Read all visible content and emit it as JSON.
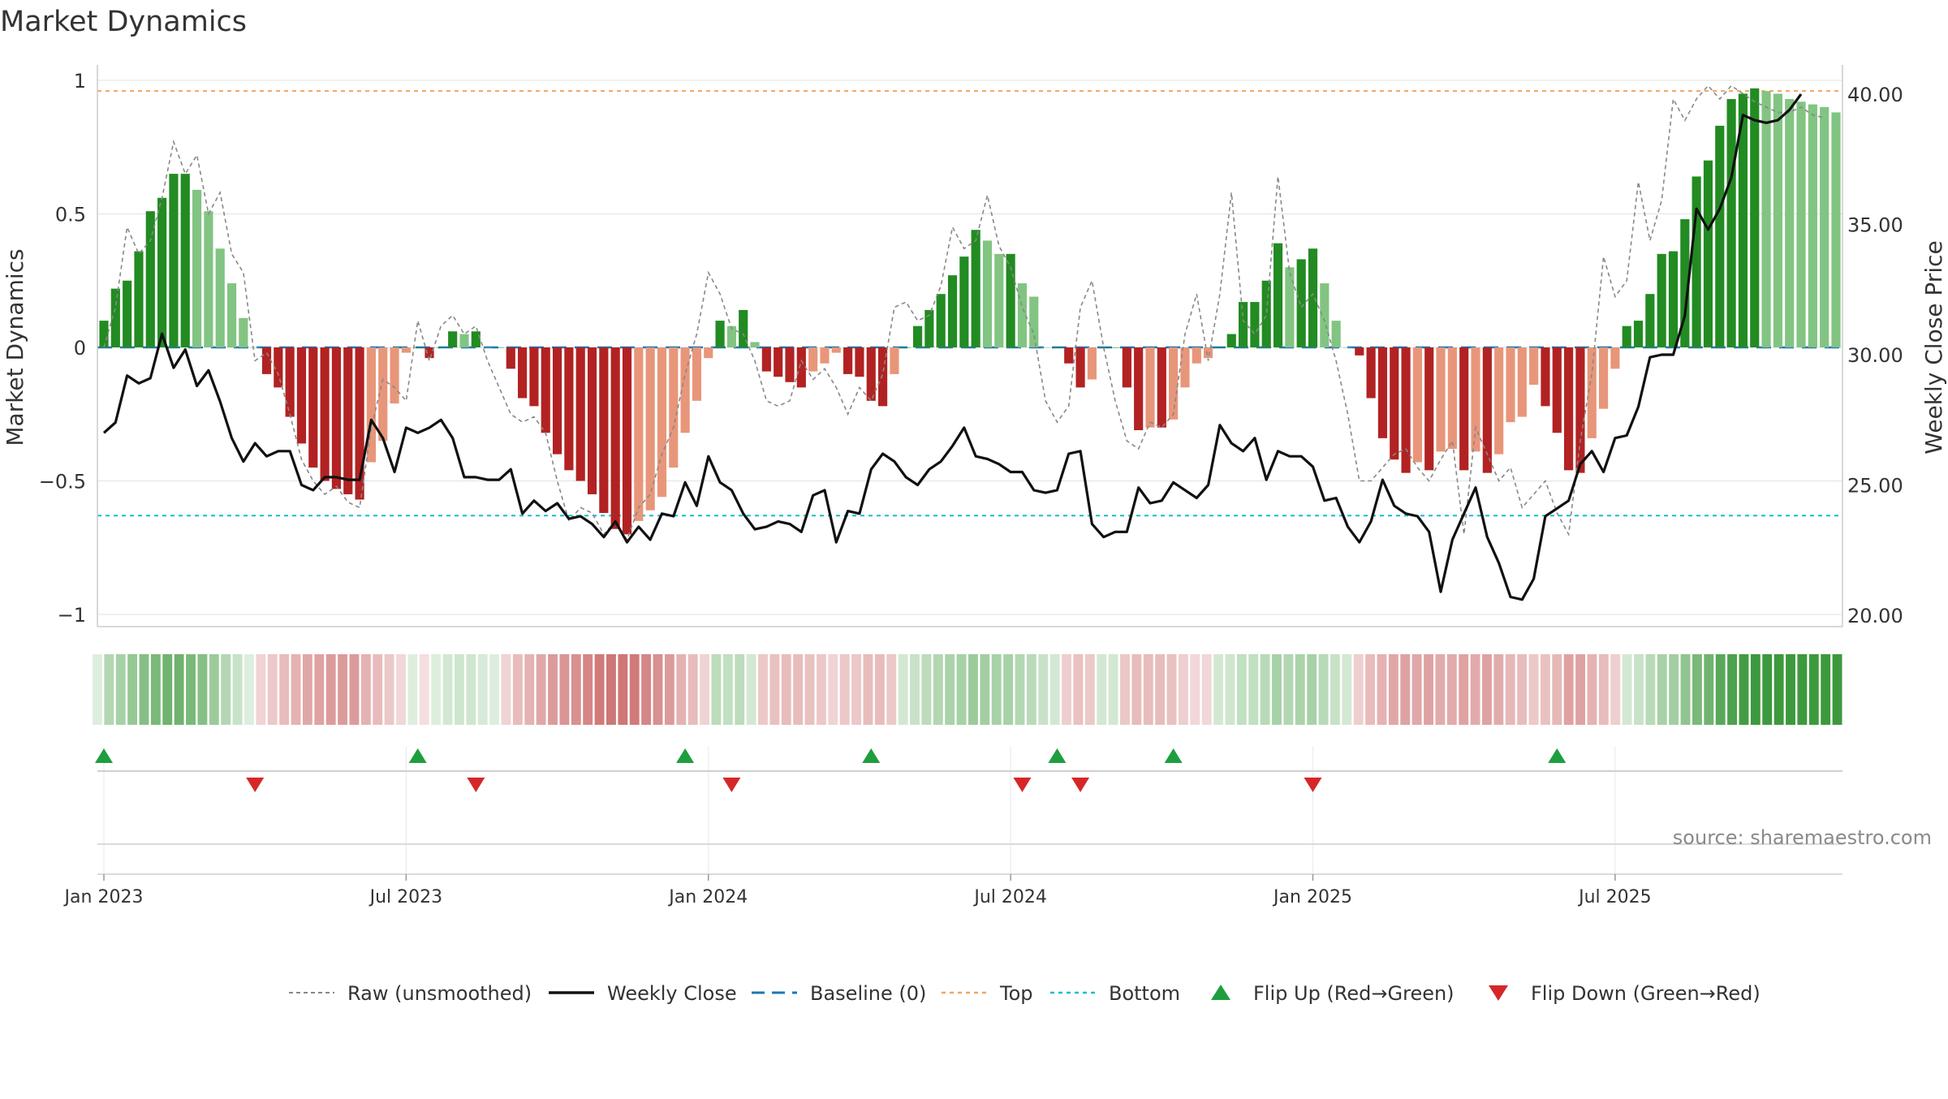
{
  "title": "Market Dynamics",
  "source_text": "source: sharemaestro.com",
  "chart_data": {
    "type": "bar",
    "title": "Market Dynamics",
    "ylabel_left": "Market Dynamics",
    "ylabel_right": "Weekly Close Price",
    "ylim_left": [
      -1.05,
      1.05
    ],
    "ylim_right": [
      20,
      40
    ],
    "yticks_left": [
      {
        "value": 1,
        "label": "1"
      },
      {
        "value": 0.5,
        "label": "0.5"
      },
      {
        "value": 0,
        "label": "0"
      },
      {
        "value": -0.5,
        "label": "−0.5"
      },
      {
        "value": -1,
        "label": "−1"
      }
    ],
    "yticks_right": [
      {
        "value": 40,
        "label": "40.00"
      },
      {
        "value": 35,
        "label": "35.00"
      },
      {
        "value": 30,
        "label": "30.00"
      },
      {
        "value": 25,
        "label": "25.00"
      },
      {
        "value": 20,
        "label": "20.00"
      }
    ],
    "xticks": [
      {
        "week": 1,
        "label": "Jan 2023"
      },
      {
        "week": 27,
        "label": "Jul 2023"
      },
      {
        "week": 53,
        "label": "Jan 2024"
      },
      {
        "week": 79,
        "label": "Jul 2024"
      },
      {
        "week": 105,
        "label": "Jan 2025"
      },
      {
        "week": 131,
        "label": "Jul 2025"
      }
    ],
    "reference_lines": {
      "top": 0.96,
      "bottom": -0.63,
      "baseline": 0
    },
    "grid": true,
    "legend_position": "bottom",
    "legend": [
      {
        "label": "Raw (unsmoothed)",
        "style": "dashed-gray"
      },
      {
        "label": "Weekly Close",
        "style": "solid-black"
      },
      {
        "label": "Baseline (0)",
        "style": "dashed-blue"
      },
      {
        "label": "Top",
        "style": "dotted-orange"
      },
      {
        "label": "Bottom",
        "style": "dotted-cyan"
      },
      {
        "label": "Flip Up (Red→Green)",
        "style": "triangle-up"
      },
      {
        "label": "Flip Down (Green→Red)",
        "style": "triangle-down"
      }
    ],
    "colors": {
      "green_strong": "#228b22",
      "green_light": "#82c482",
      "red_strong": "#b22222",
      "red_light": "#e8967a",
      "raw": "#888888",
      "close": "#111111",
      "baseline": "#1f77b4",
      "top": "#f4a460",
      "bottom": "#17becf",
      "flip_up": "#1e9e3e",
      "flip_down": "#d62728"
    },
    "series": [
      {
        "name": "Market Dynamics",
        "values": [
          0.1,
          0.22,
          0.25,
          0.36,
          0.51,
          0.56,
          0.65,
          0.65,
          0.59,
          0.51,
          0.37,
          0.24,
          0.11,
          0.0,
          -0.1,
          -0.15,
          -0.26,
          -0.36,
          -0.45,
          -0.5,
          -0.53,
          -0.55,
          -0.57,
          -0.43,
          -0.35,
          -0.21,
          -0.02,
          0.0,
          -0.04,
          0.0,
          0.06,
          0.05,
          0.06,
          0.0,
          0.0,
          -0.08,
          -0.19,
          -0.22,
          -0.32,
          -0.4,
          -0.46,
          -0.5,
          -0.55,
          -0.62,
          -0.68,
          -0.7,
          -0.65,
          -0.61,
          -0.56,
          -0.45,
          -0.32,
          -0.2,
          -0.04,
          0.1,
          0.08,
          0.14,
          0.02,
          -0.09,
          -0.11,
          -0.13,
          -0.15,
          -0.09,
          -0.06,
          -0.02,
          -0.1,
          -0.11,
          -0.2,
          -0.22,
          -0.1,
          0.0,
          0.08,
          0.14,
          0.2,
          0.27,
          0.34,
          0.44,
          0.4,
          0.35,
          0.35,
          0.24,
          0.19,
          0.0,
          0.0,
          -0.06,
          -0.15,
          -0.12,
          0.0,
          0.0,
          -0.15,
          -0.31,
          -0.3,
          -0.3,
          -0.27,
          -0.15,
          -0.06,
          -0.04,
          0.0,
          0.05,
          0.17,
          0.17,
          0.25,
          0.39,
          0.3,
          0.33,
          0.37,
          0.24,
          0.1,
          0.0,
          -0.03,
          -0.19,
          -0.34,
          -0.42,
          -0.47,
          -0.43,
          -0.46,
          -0.39,
          -0.38,
          -0.46,
          -0.39,
          -0.47,
          -0.4,
          -0.28,
          -0.26,
          -0.14,
          -0.22,
          -0.32,
          -0.46,
          -0.47,
          -0.34,
          -0.23,
          -0.08,
          0.08,
          0.1,
          0.2,
          0.35,
          0.36,
          0.48,
          0.64,
          0.7,
          0.83,
          0.93,
          0.95,
          0.97,
          0.96,
          0.95,
          0.93,
          0.92,
          0.91,
          0.9,
          0.88
        ]
      },
      {
        "name": "Raw (unsmoothed)",
        "values": [
          0.0,
          0.15,
          0.45,
          0.35,
          0.4,
          0.56,
          0.77,
          0.65,
          0.72,
          0.5,
          0.58,
          0.35,
          0.28,
          -0.05,
          -0.02,
          -0.1,
          -0.25,
          -0.42,
          -0.5,
          -0.55,
          -0.52,
          -0.58,
          -0.6,
          -0.3,
          -0.12,
          -0.15,
          -0.2,
          0.1,
          -0.05,
          0.08,
          0.12,
          0.05,
          0.08,
          -0.05,
          -0.15,
          -0.25,
          -0.28,
          -0.26,
          -0.32,
          -0.5,
          -0.65,
          -0.6,
          -0.62,
          -0.7,
          -0.65,
          -0.72,
          -0.6,
          -0.55,
          -0.4,
          -0.3,
          -0.1,
          0.05,
          0.28,
          0.2,
          0.07,
          0.05,
          -0.05,
          -0.2,
          -0.22,
          -0.2,
          -0.05,
          -0.12,
          -0.08,
          -0.15,
          -0.25,
          -0.15,
          -0.2,
          -0.1,
          0.15,
          0.17,
          0.1,
          0.12,
          0.23,
          0.45,
          0.37,
          0.4,
          0.57,
          0.38,
          0.3,
          0.15,
          0.05,
          -0.2,
          -0.28,
          -0.22,
          0.15,
          0.25,
          0.0,
          -0.2,
          -0.35,
          -0.38,
          -0.28,
          -0.3,
          -0.25,
          0.05,
          0.2,
          -0.05,
          0.2,
          0.58,
          0.1,
          0.05,
          0.12,
          0.64,
          0.28,
          0.15,
          0.2,
          0.1,
          -0.05,
          -0.25,
          -0.5,
          -0.5,
          -0.45,
          -0.4,
          -0.38,
          -0.45,
          -0.5,
          -0.42,
          -0.35,
          -0.7,
          -0.3,
          -0.4,
          -0.5,
          -0.45,
          -0.6,
          -0.55,
          -0.5,
          -0.62,
          -0.7,
          -0.35,
          -0.1,
          0.34,
          0.19,
          0.25,
          0.62,
          0.4,
          0.55,
          0.93,
          0.85,
          0.93,
          0.98,
          0.93,
          0.98,
          0.95,
          0.92,
          0.9,
          0.88,
          0.88,
          0.9,
          0.87,
          0.86
        ]
      },
      {
        "name": "Weekly Close",
        "values": [
          27.0,
          27.4,
          29.2,
          28.9,
          29.1,
          30.8,
          29.5,
          30.2,
          28.8,
          29.4,
          28.2,
          26.8,
          25.9,
          26.6,
          26.1,
          26.3,
          26.3,
          25.0,
          24.8,
          25.3,
          25.3,
          25.2,
          25.2,
          27.5,
          26.8,
          25.5,
          27.2,
          27.0,
          27.2,
          27.5,
          26.8,
          25.3,
          25.3,
          25.2,
          25.2,
          25.6,
          23.9,
          24.4,
          24.0,
          24.3,
          23.7,
          23.8,
          23.5,
          23.0,
          23.6,
          22.8,
          23.4,
          22.9,
          23.9,
          23.8,
          25.1,
          24.2,
          26.1,
          25.1,
          24.8,
          23.9,
          23.3,
          23.4,
          23.6,
          23.5,
          23.2,
          24.6,
          24.8,
          22.8,
          24.0,
          23.9,
          25.6,
          26.2,
          25.9,
          25.3,
          25.0,
          25.6,
          25.9,
          26.5,
          27.2,
          26.1,
          26.0,
          25.8,
          25.5,
          25.5,
          24.8,
          24.7,
          24.8,
          26.2,
          26.3,
          23.5,
          23.0,
          23.2,
          23.2,
          24.9,
          24.3,
          24.4,
          25.1,
          24.8,
          24.5,
          25.0,
          27.3,
          26.6,
          26.3,
          26.8,
          25.2,
          26.3,
          26.1,
          26.1,
          25.7,
          24.4,
          24.5,
          23.4,
          22.8,
          23.6,
          25.2,
          24.2,
          23.9,
          23.8,
          23.2,
          20.9,
          22.9,
          23.9,
          24.9,
          23.0,
          22.0,
          20.7,
          20.6,
          21.4,
          23.8,
          24.1,
          24.4,
          25.8,
          26.3,
          25.5,
          26.8,
          26.9,
          28.0,
          29.9,
          30.0,
          30.0,
          31.5,
          35.6,
          34.8,
          35.6,
          36.8,
          39.2,
          39.0,
          38.9,
          39.0,
          39.4,
          40.0
        ]
      }
    ],
    "regime_strip": {
      "alphas": [
        0.15,
        0.35,
        0.4,
        0.48,
        0.55,
        0.6,
        0.65,
        0.65,
        0.6,
        0.55,
        0.45,
        0.35,
        0.25,
        0.15,
        0.2,
        0.25,
        0.3,
        0.35,
        0.4,
        0.42,
        0.45,
        0.45,
        0.45,
        0.35,
        0.3,
        0.25,
        0.18,
        0.15,
        0.15,
        0.15,
        0.2,
        0.22,
        0.22,
        0.18,
        0.15,
        0.2,
        0.3,
        0.35,
        0.4,
        0.45,
        0.48,
        0.5,
        0.55,
        0.6,
        0.62,
        0.62,
        0.6,
        0.55,
        0.5,
        0.45,
        0.35,
        0.3,
        0.2,
        0.3,
        0.28,
        0.3,
        0.2,
        0.25,
        0.28,
        0.3,
        0.3,
        0.28,
        0.25,
        0.2,
        0.25,
        0.25,
        0.3,
        0.3,
        0.25,
        0.2,
        0.25,
        0.3,
        0.35,
        0.38,
        0.4,
        0.45,
        0.42,
        0.4,
        0.4,
        0.35,
        0.32,
        0.25,
        0.2,
        0.22,
        0.28,
        0.25,
        0.2,
        0.2,
        0.25,
        0.3,
        0.3,
        0.3,
        0.28,
        0.22,
        0.18,
        0.18,
        0.2,
        0.22,
        0.28,
        0.28,
        0.32,
        0.4,
        0.35,
        0.38,
        0.4,
        0.32,
        0.25,
        0.2,
        0.22,
        0.3,
        0.35,
        0.4,
        0.42,
        0.4,
        0.42,
        0.38,
        0.38,
        0.42,
        0.38,
        0.42,
        0.38,
        0.32,
        0.3,
        0.25,
        0.28,
        0.32,
        0.42,
        0.42,
        0.35,
        0.3,
        0.22,
        0.2,
        0.25,
        0.32,
        0.4,
        0.42,
        0.5,
        0.6,
        0.65,
        0.75,
        0.8,
        0.85,
        0.88,
        0.88,
        0.88,
        0.88,
        0.88,
        0.88,
        0.88,
        0.88
      ]
    },
    "flips": {
      "up_weeks": [
        1,
        28,
        51,
        67,
        83,
        93,
        126
      ],
      "down_weeks": [
        14,
        33,
        55,
        80,
        85,
        105
      ]
    }
  }
}
